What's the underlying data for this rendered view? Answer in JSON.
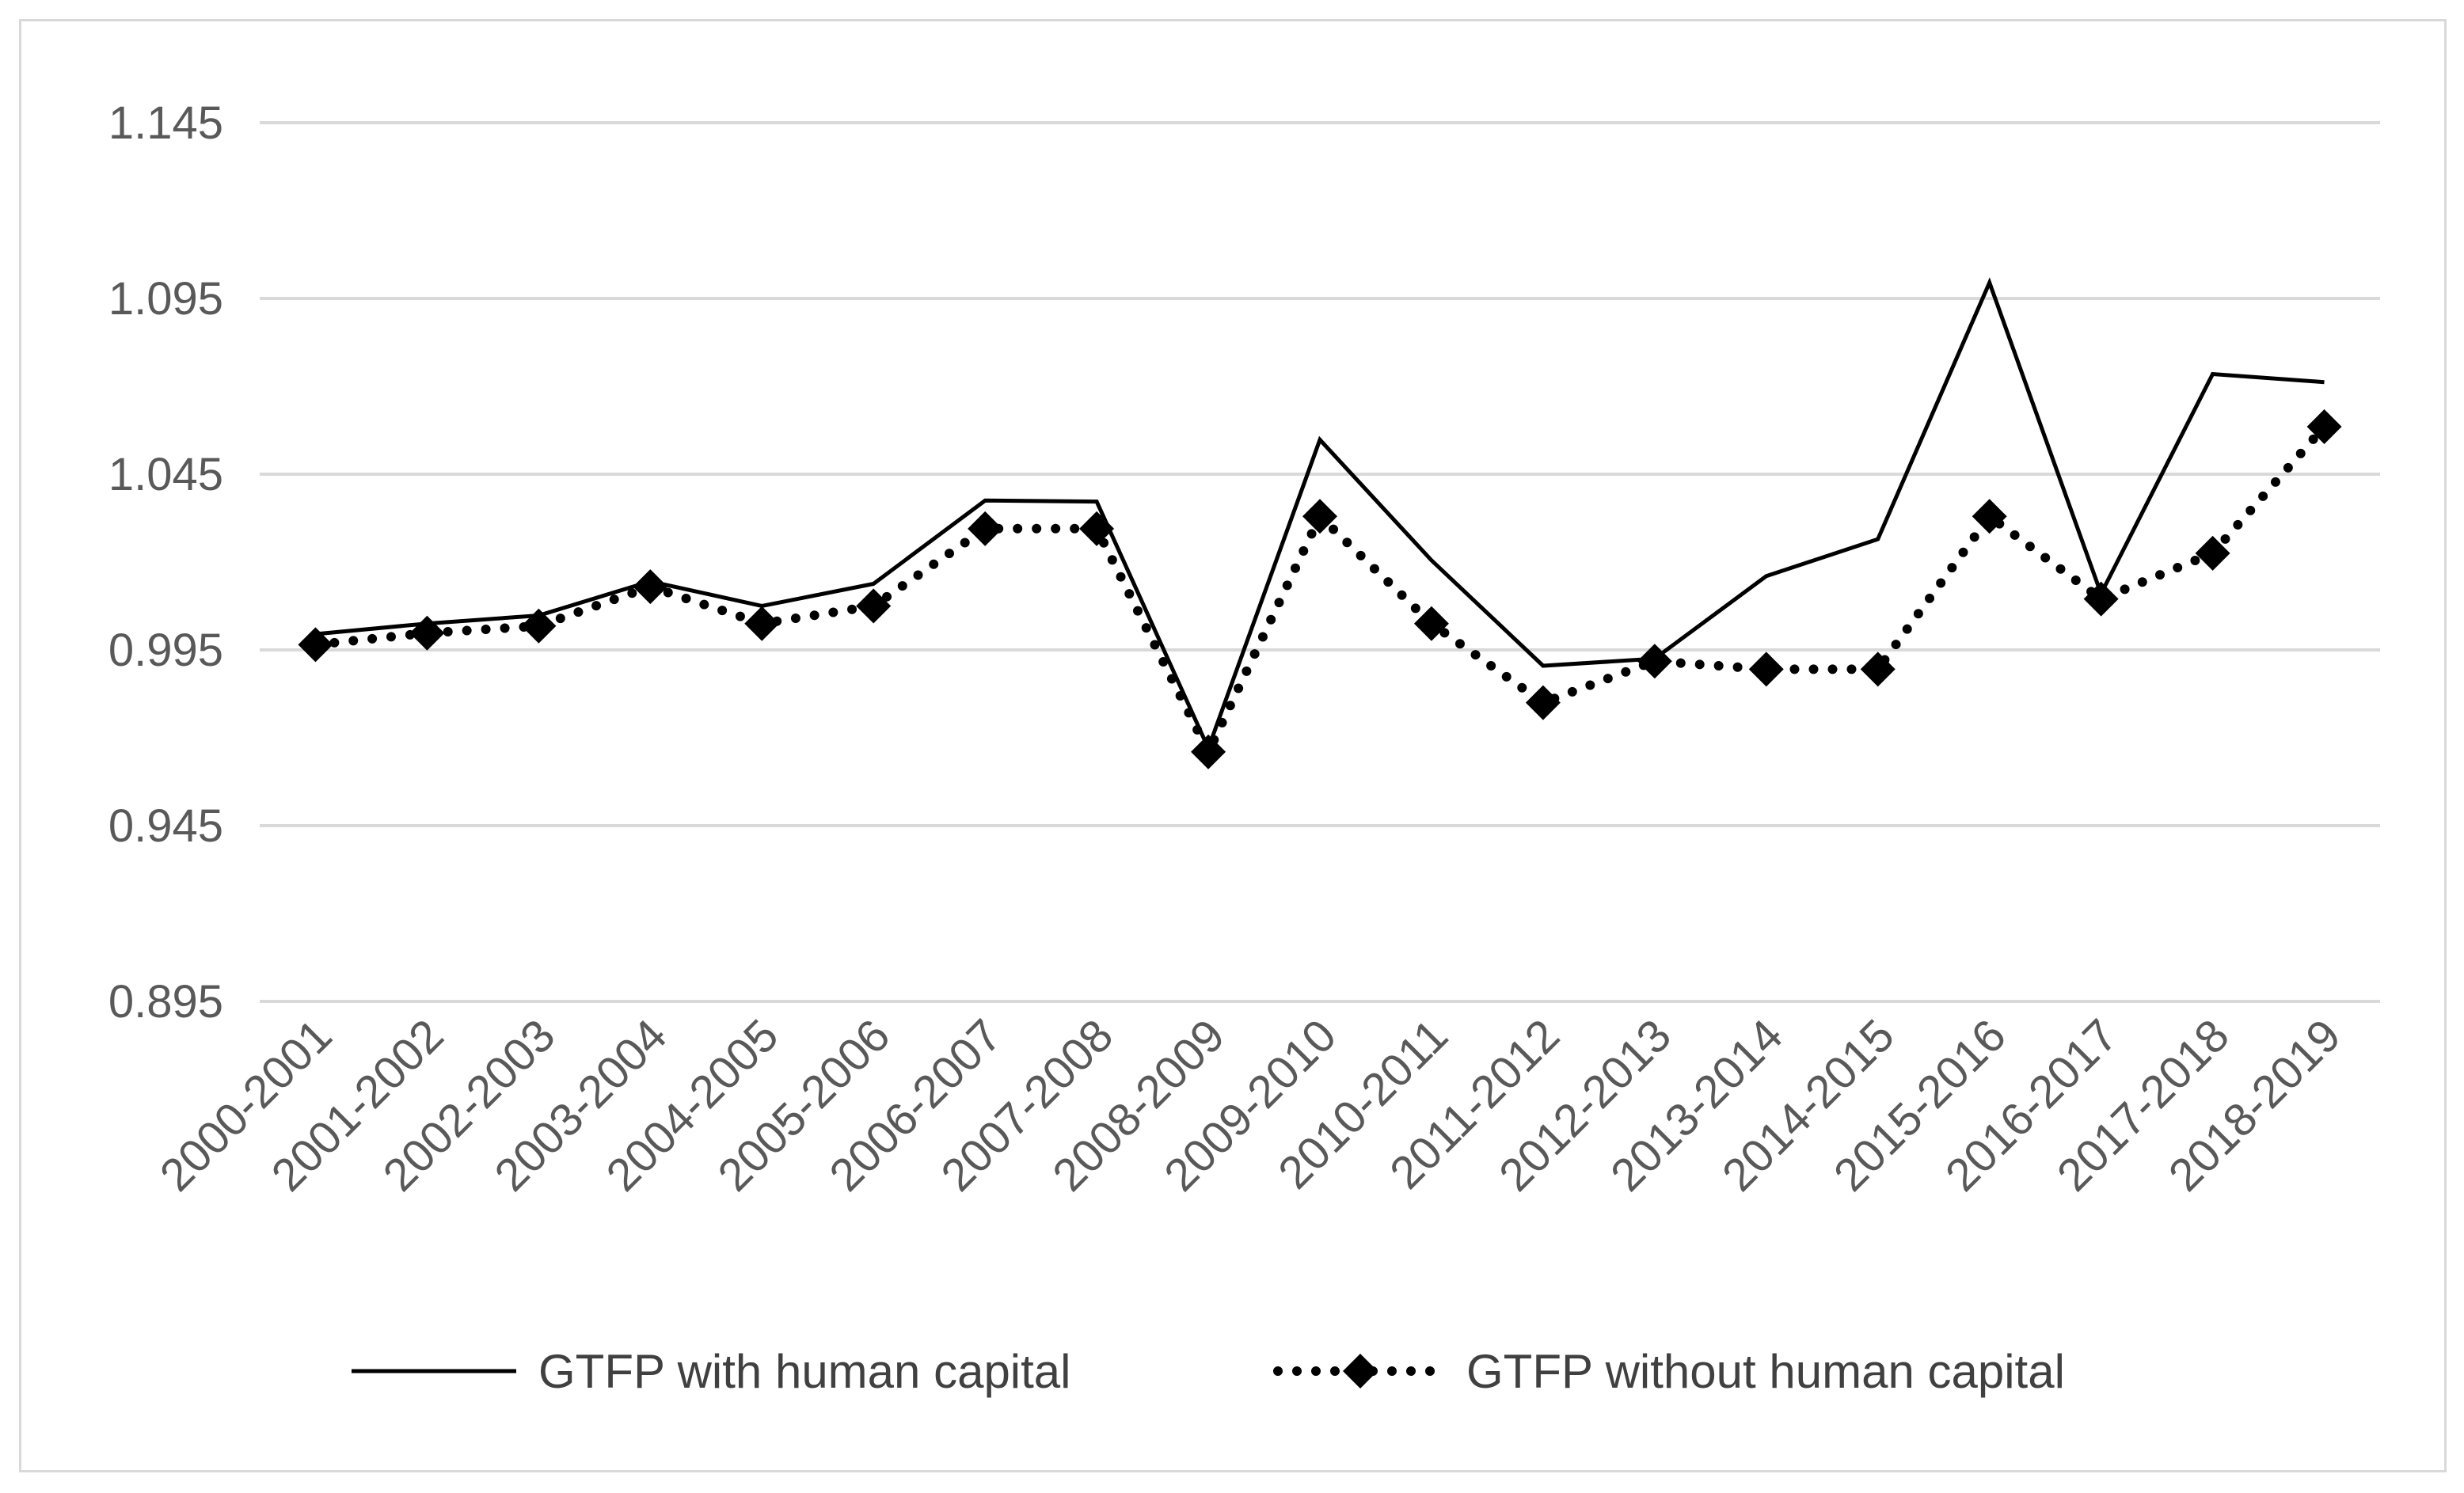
{
  "chart_data": {
    "type": "line",
    "title": "",
    "xlabel": "",
    "ylabel": "",
    "categories": [
      "2000-2001",
      "2001-2002",
      "2002-2003",
      "2003-2004",
      "2004-2005",
      "2005-2006",
      "2006-2007",
      "2007-2008",
      "2008-2009",
      "2009-2010",
      "2010-2011",
      "2011-2012",
      "2012-2013",
      "2013-2014",
      "2014-2015",
      "2015-2016",
      "2016-2017",
      "2017-2018",
      "2018-2019"
    ],
    "yticks": [
      "0.895",
      "0.945",
      "0.995",
      "1.045",
      "1.095",
      "1.145"
    ],
    "ylim": [
      0.895,
      1.145
    ],
    "grid": true,
    "legend_position": "bottom",
    "series": [
      {
        "name": "GTFP with human capital",
        "style": "solid",
        "color": "#000000",
        "values": [
          0.9995,
          1.0025,
          1.0048,
          1.0145,
          1.0075,
          1.0138,
          1.0375,
          1.0372,
          0.967,
          1.0548,
          1.0205,
          0.9905,
          0.9925,
          1.016,
          1.0265,
          1.0995,
          1.011,
          1.0735,
          1.0712
        ]
      },
      {
        "name": "GTFP without human capital",
        "style": "dotted",
        "marker": "diamond",
        "color": "#000000",
        "values": [
          0.9965,
          0.9998,
          1.0018,
          1.013,
          1.0025,
          1.0075,
          1.0295,
          1.0295,
          0.966,
          1.033,
          1.0025,
          0.98,
          0.9918,
          0.9895,
          0.9895,
          1.033,
          1.0095,
          1.0225,
          1.0585
        ]
      }
    ]
  }
}
